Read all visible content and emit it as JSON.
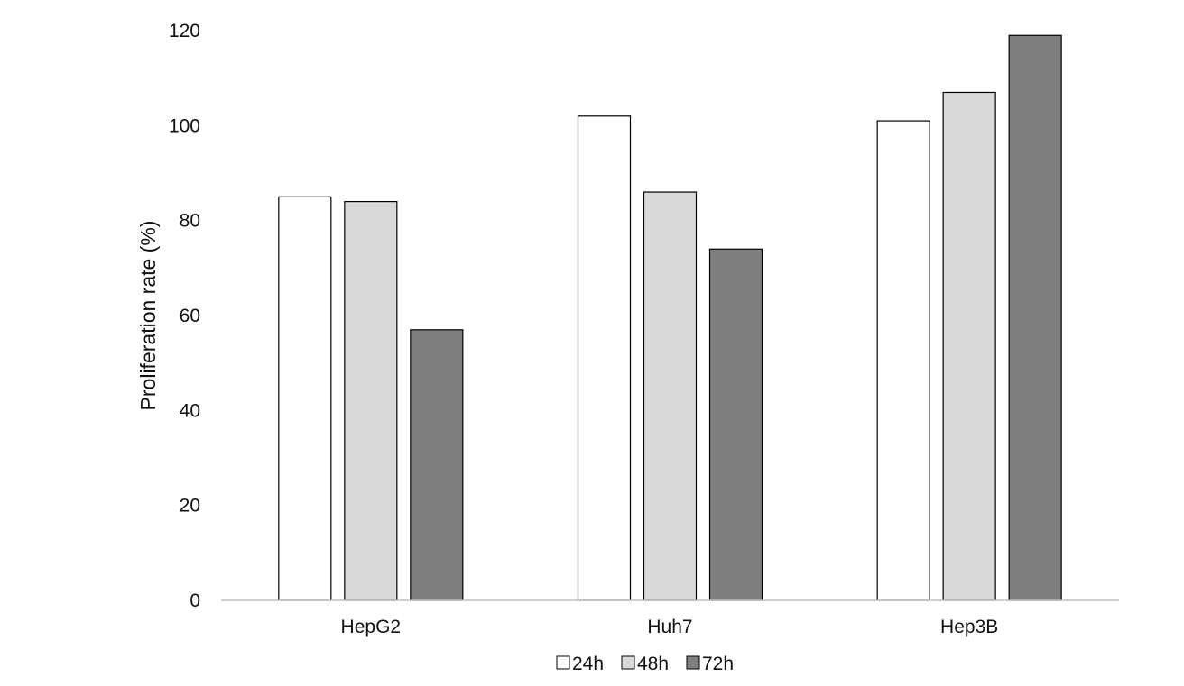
{
  "chart_data": {
    "type": "bar",
    "title": "",
    "xlabel": "",
    "ylabel": "Proliferation rate (%)",
    "ylim": [
      0,
      120
    ],
    "yticks": [
      0,
      20,
      40,
      60,
      80,
      100,
      120
    ],
    "categories": [
      "HepG2",
      "Huh7",
      "Hep3B"
    ],
    "series": [
      {
        "name": "24h",
        "values": [
          85,
          102,
          101
        ],
        "color": "#ffffff"
      },
      {
        "name": "48h",
        "values": [
          84,
          86,
          107
        ],
        "color": "#d9d9d9"
      },
      {
        "name": "72h",
        "values": [
          57,
          74,
          119
        ],
        "color": "#7f7f7f"
      }
    ],
    "grid": false,
    "legend": "bottom"
  }
}
